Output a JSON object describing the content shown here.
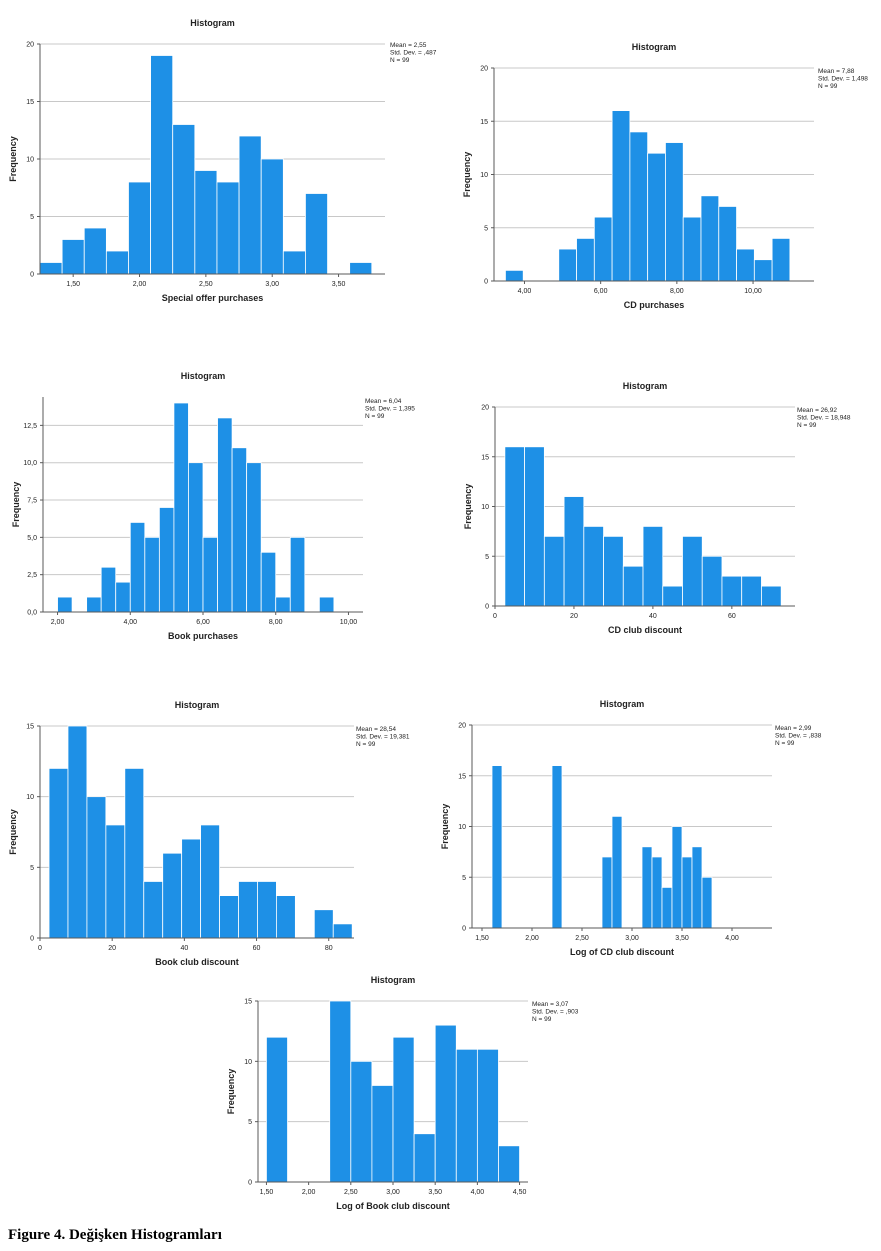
{
  "caption": "Figure 4. Değişken Histogramları",
  "colors": {
    "bar": "#1e90e6",
    "bar_edge": "#ffffff",
    "grid": "#c8c8c8",
    "axis": "#5a5a5a",
    "text": "#222222"
  },
  "chart_data": [
    {
      "type": "bar",
      "title": "Histogram",
      "xlabel": "Special offer purchases",
      "ylabel": "Frequency",
      "stats": [
        "Mean = 2,55",
        "Std. Dev. = ,487",
        "N = 99"
      ],
      "bin_start": 1.25,
      "bin_width": 0.1667,
      "xlim": [
        1.25,
        3.85
      ],
      "ylim": [
        0,
        20
      ],
      "values": [
        1,
        3,
        4,
        2,
        8,
        19,
        13,
        9,
        8,
        12,
        10,
        2,
        7,
        0,
        1
      ],
      "xticks": [
        {
          "v": 1.5,
          "label": "1,50"
        },
        {
          "v": 2.0,
          "label": "2,00"
        },
        {
          "v": 2.5,
          "label": "2,50"
        },
        {
          "v": 3.0,
          "label": "3,00"
        },
        {
          "v": 3.5,
          "label": "3,50"
        }
      ],
      "yticks": [
        {
          "v": 0,
          "label": "0"
        },
        {
          "v": 5,
          "label": "5"
        },
        {
          "v": 10,
          "label": "10"
        },
        {
          "v": 15,
          "label": "15"
        },
        {
          "v": 20,
          "label": "20"
        }
      ]
    },
    {
      "type": "bar",
      "title": "Histogram",
      "xlabel": "CD purchases",
      "ylabel": "Frequency",
      "stats": [
        "Mean = 7,88",
        "Std. Dev. = 1,498",
        "N = 99"
      ],
      "bin_start": 3.5,
      "bin_width": 0.4667,
      "xlim": [
        3.2,
        11.6
      ],
      "ylim": [
        0,
        20
      ],
      "values": [
        1,
        0,
        0,
        3,
        4,
        6,
        16,
        14,
        12,
        13,
        6,
        8,
        7,
        3,
        2,
        4
      ],
      "xticks": [
        {
          "v": 4,
          "label": "4,00"
        },
        {
          "v": 6,
          "label": "6,00"
        },
        {
          "v": 8,
          "label": "8,00"
        },
        {
          "v": 10,
          "label": "10,00"
        }
      ],
      "yticks": [
        {
          "v": 0,
          "label": "0"
        },
        {
          "v": 5,
          "label": "5"
        },
        {
          "v": 10,
          "label": "10"
        },
        {
          "v": 15,
          "label": "15"
        },
        {
          "v": 20,
          "label": "20"
        }
      ]
    },
    {
      "type": "bar",
      "title": "Histogram",
      "xlabel": "Book purchases",
      "ylabel": "Frequency",
      "stats": [
        "Mean = 6,04",
        "Std. Dev. = 1,395",
        "N = 99"
      ],
      "bin_start": 2.0,
      "bin_width": 0.4,
      "xlim": [
        1.6,
        10.4
      ],
      "ylim": [
        0,
        14.4
      ],
      "values": [
        1,
        0,
        1,
        3,
        2,
        6,
        5,
        7,
        14,
        10,
        5,
        13,
        11,
        10,
        4,
        1,
        5,
        0,
        1
      ],
      "xticks": [
        {
          "v": 2,
          "label": "2,00"
        },
        {
          "v": 4,
          "label": "4,00"
        },
        {
          "v": 6,
          "label": "6,00"
        },
        {
          "v": 8,
          "label": "8,00"
        },
        {
          "v": 10,
          "label": "10,00"
        }
      ],
      "yticks": [
        {
          "v": 0,
          "label": "0,0"
        },
        {
          "v": 2.5,
          "label": "2,5"
        },
        {
          "v": 5,
          "label": "5,0"
        },
        {
          "v": 7.5,
          "label": "7,5"
        },
        {
          "v": 10,
          "label": "10,0"
        },
        {
          "v": 12.5,
          "label": "12,5"
        }
      ]
    },
    {
      "type": "bar",
      "title": "Histogram",
      "xlabel": "CD club discount",
      "ylabel": "Frequency",
      "stats": [
        "Mean = 26,92",
        "Std. Dev. = 18,948",
        "N = 99"
      ],
      "bin_start": 2.5,
      "bin_width": 5,
      "xlim": [
        0,
        76
      ],
      "ylim": [
        0,
        20
      ],
      "values": [
        16,
        16,
        7,
        11,
        8,
        7,
        4,
        8,
        2,
        7,
        5,
        3,
        3,
        2
      ],
      "xticks": [
        {
          "v": 0,
          "label": "0"
        },
        {
          "v": 20,
          "label": "20"
        },
        {
          "v": 40,
          "label": "40"
        },
        {
          "v": 60,
          "label": "60"
        }
      ],
      "yticks": [
        {
          "v": 0,
          "label": "0"
        },
        {
          "v": 5,
          "label": "5"
        },
        {
          "v": 10,
          "label": "10"
        },
        {
          "v": 15,
          "label": "15"
        },
        {
          "v": 20,
          "label": "20"
        }
      ]
    },
    {
      "type": "bar",
      "title": "Histogram",
      "xlabel": "Book club discount",
      "ylabel": "Frequency",
      "stats": [
        "Mean = 28,54",
        "Std. Dev. = 19,381",
        "N = 99"
      ],
      "bin_start": 2.5,
      "bin_width": 5.25,
      "xlim": [
        0,
        87
      ],
      "ylim": [
        0,
        15
      ],
      "values": [
        12,
        15,
        10,
        8,
        12,
        4,
        6,
        7,
        8,
        3,
        4,
        4,
        3,
        0,
        2,
        1
      ],
      "xticks": [
        {
          "v": 0,
          "label": "0"
        },
        {
          "v": 20,
          "label": "20"
        },
        {
          "v": 40,
          "label": "40"
        },
        {
          "v": 60,
          "label": "60"
        },
        {
          "v": 80,
          "label": "80"
        }
      ],
      "yticks": [
        {
          "v": 0,
          "label": "0"
        },
        {
          "v": 5,
          "label": "5"
        },
        {
          "v": 10,
          "label": "10"
        },
        {
          "v": 15,
          "label": "15"
        }
      ]
    },
    {
      "type": "bar",
      "title": "Histogram",
      "xlabel": "Log of CD club discount",
      "ylabel": "Frequency",
      "stats": [
        "Mean = 2,99",
        "Std. Dev. = ,838",
        "N = 99"
      ],
      "bin_start": 1.5,
      "bin_width": 0.1,
      "xlim": [
        1.4,
        4.4
      ],
      "ylim": [
        0,
        20
      ],
      "values": [
        0,
        16,
        0,
        0,
        0,
        0,
        0,
        16,
        0,
        0,
        0,
        0,
        7,
        11,
        0,
        0,
        8,
        7,
        4,
        10,
        7,
        8,
        5
      ],
      "xticks": [
        {
          "v": 1.5,
          "label": "1,50"
        },
        {
          "v": 2.0,
          "label": "2,00"
        },
        {
          "v": 2.5,
          "label": "2,50"
        },
        {
          "v": 3.0,
          "label": "3,00"
        },
        {
          "v": 3.5,
          "label": "3,50"
        },
        {
          "v": 4.0,
          "label": "4,00"
        }
      ],
      "yticks": [
        {
          "v": 0,
          "label": "0"
        },
        {
          "v": 5,
          "label": "5"
        },
        {
          "v": 10,
          "label": "10"
        },
        {
          "v": 15,
          "label": "15"
        },
        {
          "v": 20,
          "label": "20"
        }
      ]
    },
    {
      "type": "bar",
      "title": "Histogram",
      "xlabel": "Log of Book club discount",
      "ylabel": "Frequency",
      "stats": [
        "Mean = 3,07",
        "Std. Dev. = ,903",
        "N = 99"
      ],
      "bin_start": 1.5,
      "bin_width": 0.25,
      "xlim": [
        1.4,
        4.6
      ],
      "ylim": [
        0,
        15
      ],
      "values": [
        12,
        0,
        0,
        15,
        10,
        8,
        12,
        4,
        13,
        11,
        11,
        3
      ],
      "xticks": [
        {
          "v": 1.5,
          "label": "1,50"
        },
        {
          "v": 2.0,
          "label": "2,00"
        },
        {
          "v": 2.5,
          "label": "2,50"
        },
        {
          "v": 3.0,
          "label": "3,00"
        },
        {
          "v": 3.5,
          "label": "3,50"
        },
        {
          "v": 4.0,
          "label": "4,00"
        },
        {
          "v": 4.5,
          "label": "4,50"
        }
      ],
      "yticks": [
        {
          "v": 0,
          "label": "0"
        },
        {
          "v": 5,
          "label": "5"
        },
        {
          "v": 10,
          "label": "10"
        },
        {
          "v": 15,
          "label": "15"
        }
      ]
    }
  ]
}
